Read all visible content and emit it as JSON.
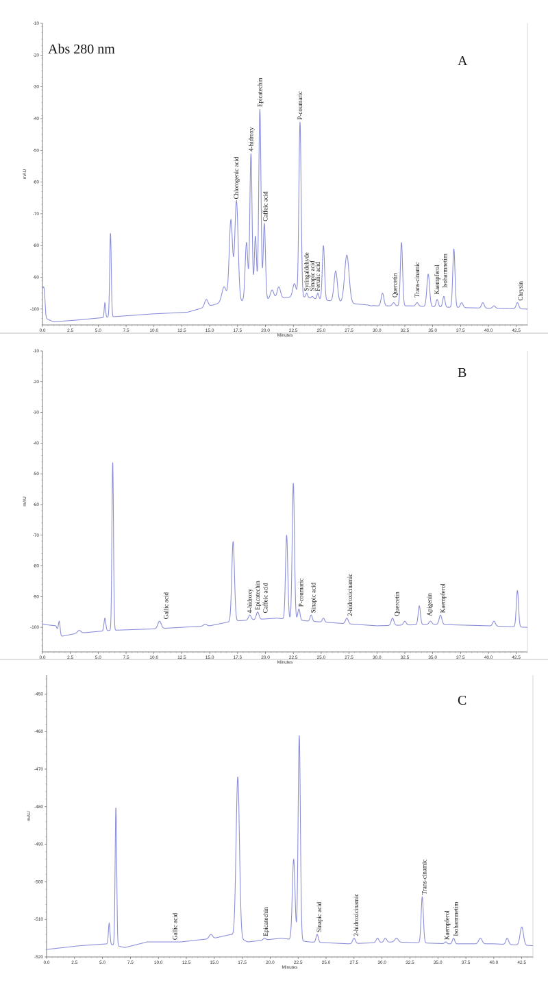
{
  "chart_data": [
    {
      "type": "line",
      "panel_label": "A",
      "annotation": "Abs 280 nm",
      "xlabel": "Minutes",
      "ylabel": "mAU",
      "xlim": [
        0,
        43.5
      ],
      "ylim": [
        -105,
        -10
      ],
      "x_ticks": [
        "0.0",
        "2.5",
        "5.0",
        "7.5",
        "10.0",
        "12.5",
        "15.0",
        "17.5",
        "20.0",
        "22.5",
        "25.0",
        "27.5",
        "30.0",
        "32.5",
        "35.0",
        "37.5",
        "40.0",
        "42.5"
      ],
      "y_ticks": [
        "-10",
        "-20",
        "-30",
        "-40",
        "-50",
        "-60",
        "-70",
        "-80",
        "-90",
        "-100"
      ],
      "baseline": [
        [
          0,
          -94
        ],
        [
          0.3,
          -103
        ],
        [
          1,
          -104
        ],
        [
          3,
          -103.5
        ],
        [
          6,
          -102.5
        ],
        [
          10,
          -101.5
        ],
        [
          13,
          -101
        ],
        [
          16,
          -98
        ],
        [
          20,
          -97
        ],
        [
          23,
          -96
        ],
        [
          27,
          -98
        ],
        [
          30,
          -99
        ],
        [
          33,
          -99
        ],
        [
          37,
          -99.5
        ],
        [
          43.5,
          -100
        ]
      ],
      "peaks": [
        {
          "x": 0.1,
          "y": -93,
          "w": 0.1
        },
        {
          "x": 5.6,
          "y": -98,
          "w": 0.06
        },
        {
          "x": 6.1,
          "y": -76,
          "w": 0.07
        },
        {
          "x": 14.7,
          "y": -97,
          "w": 0.15
        },
        {
          "x": 16.3,
          "y": -93,
          "w": 0.2
        },
        {
          "x": 16.9,
          "y": -72,
          "w": 0.15
        },
        {
          "x": 17.4,
          "y": -66,
          "w": 0.15
        },
        {
          "x": 18.3,
          "y": -79,
          "w": 0.12
        },
        {
          "x": 18.7,
          "y": -51,
          "w": 0.1
        },
        {
          "x": 19.1,
          "y": -77,
          "w": 0.1
        },
        {
          "x": 19.5,
          "y": -37,
          "w": 0.1
        },
        {
          "x": 19.9,
          "y": -73,
          "w": 0.1
        },
        {
          "x": 20.6,
          "y": -94,
          "w": 0.15
        },
        {
          "x": 21.2,
          "y": -93,
          "w": 0.15
        },
        {
          "x": 22.6,
          "y": -92,
          "w": 0.15
        },
        {
          "x": 23.1,
          "y": -41,
          "w": 0.1
        },
        {
          "x": 23.7,
          "y": -95,
          "w": 0.08
        },
        {
          "x": 24.2,
          "y": -96,
          "w": 0.08
        },
        {
          "x": 24.7,
          "y": -95,
          "w": 0.08
        },
        {
          "x": 25.2,
          "y": -80,
          "w": 0.1
        },
        {
          "x": 26.3,
          "y": -88,
          "w": 0.15
        },
        {
          "x": 27.3,
          "y": -83,
          "w": 0.2
        },
        {
          "x": 29.5,
          "y": -99,
          "w": 0.12
        },
        {
          "x": 30.5,
          "y": -95,
          "w": 0.12
        },
        {
          "x": 31.5,
          "y": -98,
          "w": 0.12
        },
        {
          "x": 32.2,
          "y": -79,
          "w": 0.1
        },
        {
          "x": 33.6,
          "y": -98,
          "w": 0.12
        },
        {
          "x": 34.6,
          "y": -89,
          "w": 0.12
        },
        {
          "x": 35.4,
          "y": -97,
          "w": 0.1
        },
        {
          "x": 36.0,
          "y": -96,
          "w": 0.1
        },
        {
          "x": 36.9,
          "y": -81,
          "w": 0.1
        },
        {
          "x": 37.6,
          "y": -98,
          "w": 0.12
        },
        {
          "x": 39.5,
          "y": -98,
          "w": 0.12
        },
        {
          "x": 40.5,
          "y": -99,
          "w": 0.12
        },
        {
          "x": 42.6,
          "y": -98,
          "w": 0.12
        }
      ],
      "labels": [
        {
          "text": "Chlorogenic acid",
          "x": 17.4,
          "y": -66
        },
        {
          "text": "4-hidroxy",
          "x": 18.7,
          "y": -51
        },
        {
          "text": "Epicatechin",
          "x": 19.5,
          "y": -37
        },
        {
          "text": "Caffeic acid",
          "x": 20.0,
          "y": -73
        },
        {
          "text": "P-coumaric",
          "x": 23.1,
          "y": -41
        },
        {
          "text": "Syringaldehyde",
          "x": 23.7,
          "y": -95
        },
        {
          "text": "Sinapic acid",
          "x": 24.2,
          "y": -95
        },
        {
          "text": "Ferulic acid",
          "x": 24.7,
          "y": -95
        },
        {
          "text": "Quercetin",
          "x": 31.6,
          "y": -97
        },
        {
          "text": "Trans-cinamic",
          "x": 33.6,
          "y": -97
        },
        {
          "text": "Kaempferol",
          "x": 35.4,
          "y": -96
        },
        {
          "text": "Isoharmnetim",
          "x": 36.1,
          "y": -94
        },
        {
          "text": "Chrysin",
          "x": 42.9,
          "y": -98
        }
      ]
    },
    {
      "type": "line",
      "panel_label": "B",
      "xlabel": "Minutes",
      "ylabel": "mAU",
      "xlim": [
        0,
        43.5
      ],
      "ylim": [
        -108,
        -10
      ],
      "x_ticks": [
        "0.0",
        "2.5",
        "5.0",
        "7.5",
        "10.0",
        "12.5",
        "15.0",
        "17.5",
        "20.0",
        "22.5",
        "25.0",
        "27.5",
        "30.0",
        "32.5",
        "35.0",
        "37.5",
        "40.0",
        "42.5"
      ],
      "y_ticks": [
        "-10",
        "-20",
        "-30",
        "-40",
        "-50",
        "-60",
        "-70",
        "-80",
        "-90",
        "-100"
      ],
      "baseline": [
        [
          0,
          -99
        ],
        [
          1.2,
          -99.5
        ],
        [
          1.6,
          -103
        ],
        [
          3,
          -102
        ],
        [
          6,
          -101
        ],
        [
          10,
          -100.5
        ],
        [
          15,
          -99.5
        ],
        [
          17,
          -98
        ],
        [
          21,
          -97
        ],
        [
          24,
          -98
        ],
        [
          30,
          -99.5
        ],
        [
          35,
          -99
        ],
        [
          40,
          -99.5
        ],
        [
          43.5,
          -100
        ]
      ],
      "peaks": [
        {
          "x": 1.5,
          "y": -98,
          "w": 0.08
        },
        {
          "x": 3.3,
          "y": -101,
          "w": 0.15
        },
        {
          "x": 5.6,
          "y": -97,
          "w": 0.08
        },
        {
          "x": 6.3,
          "y": -46,
          "w": 0.07
        },
        {
          "x": 10.5,
          "y": -98,
          "w": 0.15
        },
        {
          "x": 14.6,
          "y": -99,
          "w": 0.15
        },
        {
          "x": 17.1,
          "y": -72,
          "w": 0.12
        },
        {
          "x": 18.6,
          "y": -96,
          "w": 0.12
        },
        {
          "x": 19.3,
          "y": -95,
          "w": 0.12
        },
        {
          "x": 21.9,
          "y": -70,
          "w": 0.1
        },
        {
          "x": 22.5,
          "y": -53,
          "w": 0.1
        },
        {
          "x": 23.0,
          "y": -94,
          "w": 0.1
        },
        {
          "x": 24.1,
          "y": -96,
          "w": 0.1
        },
        {
          "x": 25.2,
          "y": -97,
          "w": 0.1
        },
        {
          "x": 27.3,
          "y": -97,
          "w": 0.12
        },
        {
          "x": 31.4,
          "y": -97,
          "w": 0.12
        },
        {
          "x": 32.5,
          "y": -98,
          "w": 0.12
        },
        {
          "x": 33.8,
          "y": -93,
          "w": 0.1
        },
        {
          "x": 34.8,
          "y": -98,
          "w": 0.12
        },
        {
          "x": 35.7,
          "y": -96,
          "w": 0.12
        },
        {
          "x": 40.5,
          "y": -98,
          "w": 0.12
        },
        {
          "x": 42.6,
          "y": -88,
          "w": 0.1
        }
      ],
      "labels": [
        {
          "text": "Gallic acid",
          "x": 11.1,
          "y": -98
        },
        {
          "text": "4-hidroxy",
          "x": 18.6,
          "y": -96
        },
        {
          "text": "Epicatechin",
          "x": 19.3,
          "y": -95
        },
        {
          "text": "Caffeic acid",
          "x": 20.0,
          "y": -96
        },
        {
          "text": "P-coumaric",
          "x": 23.2,
          "y": -94
        },
        {
          "text": "Sinapic acid",
          "x": 24.3,
          "y": -96
        },
        {
          "text": "2-hidroxicinamic",
          "x": 27.6,
          "y": -97
        },
        {
          "text": "Quercetin",
          "x": 31.8,
          "y": -97
        },
        {
          "text": "Apigenin",
          "x": 34.7,
          "y": -97
        },
        {
          "text": "Kaempferol",
          "x": 35.9,
          "y": -96
        }
      ]
    },
    {
      "type": "line",
      "panel_label": "C",
      "xlabel": "Minutes",
      "ylabel": "mAU",
      "xlim": [
        0,
        43.5
      ],
      "ylim": [
        -520,
        -445
      ],
      "x_ticks": [
        "0.0",
        "2.5",
        "5.0",
        "7.5",
        "10.0",
        "12.5",
        "15.0",
        "17.5",
        "20.0",
        "22.5",
        "25.0",
        "27.5",
        "30.0",
        "32.5",
        "35.0",
        "37.5",
        "40.0",
        "42.5"
      ],
      "y_ticks": [
        "-450",
        "-460",
        "-470",
        "-480",
        "-490",
        "-500",
        "-510",
        "-520"
      ],
      "baseline": [
        [
          0,
          -518
        ],
        [
          3,
          -517
        ],
        [
          5.5,
          -516.5
        ],
        [
          7,
          -517.5
        ],
        [
          9,
          -516
        ],
        [
          12,
          -516
        ],
        [
          15,
          -515
        ],
        [
          16.5,
          -514
        ],
        [
          18,
          -516
        ],
        [
          21,
          -515
        ],
        [
          23.5,
          -516
        ],
        [
          27,
          -516.5
        ],
        [
          31,
          -516
        ],
        [
          36,
          -516.5
        ],
        [
          40,
          -516.5
        ],
        [
          43.5,
          -517
        ]
      ],
      "peaks": [
        {
          "x": 5.6,
          "y": -511,
          "w": 0.07
        },
        {
          "x": 6.2,
          "y": -480,
          "w": 0.07
        },
        {
          "x": 14.7,
          "y": -514,
          "w": 0.15
        },
        {
          "x": 17.1,
          "y": -472,
          "w": 0.15
        },
        {
          "x": 19.5,
          "y": -515,
          "w": 0.12
        },
        {
          "x": 22.1,
          "y": -494,
          "w": 0.12
        },
        {
          "x": 22.6,
          "y": -461,
          "w": 0.1
        },
        {
          "x": 24.2,
          "y": -514,
          "w": 0.1
        },
        {
          "x": 27.5,
          "y": -515,
          "w": 0.12
        },
        {
          "x": 29.6,
          "y": -515,
          "w": 0.12
        },
        {
          "x": 30.3,
          "y": -515,
          "w": 0.12
        },
        {
          "x": 31.3,
          "y": -515,
          "w": 0.15
        },
        {
          "x": 33.6,
          "y": -504,
          "w": 0.1
        },
        {
          "x": 35.7,
          "y": -516,
          "w": 0.1
        },
        {
          "x": 36.4,
          "y": -515,
          "w": 0.1
        },
        {
          "x": 38.8,
          "y": -515,
          "w": 0.15
        },
        {
          "x": 41.2,
          "y": -515,
          "w": 0.12
        },
        {
          "x": 42.5,
          "y": -512,
          "w": 0.15
        }
      ],
      "labels": [
        {
          "text": "Gallic acid",
          "x": 11.5,
          "y": -516
        },
        {
          "text": "Epicatechin",
          "x": 19.6,
          "y": -515
        },
        {
          "text": "Sinapic acid",
          "x": 24.4,
          "y": -514
        },
        {
          "text": "2-hidroxicinamic",
          "x": 27.7,
          "y": -515
        },
        {
          "text": "Trans-cinamic",
          "x": 33.8,
          "y": -504
        },
        {
          "text": "Kaempferol",
          "x": 35.8,
          "y": -516
        },
        {
          "text": "Isoharmnetim",
          "x": 36.6,
          "y": -515
        }
      ]
    }
  ],
  "colors": {
    "trace": "#8b8fd9",
    "axis": "#555555",
    "divider": "#aaaaaa",
    "text": "#111111"
  }
}
